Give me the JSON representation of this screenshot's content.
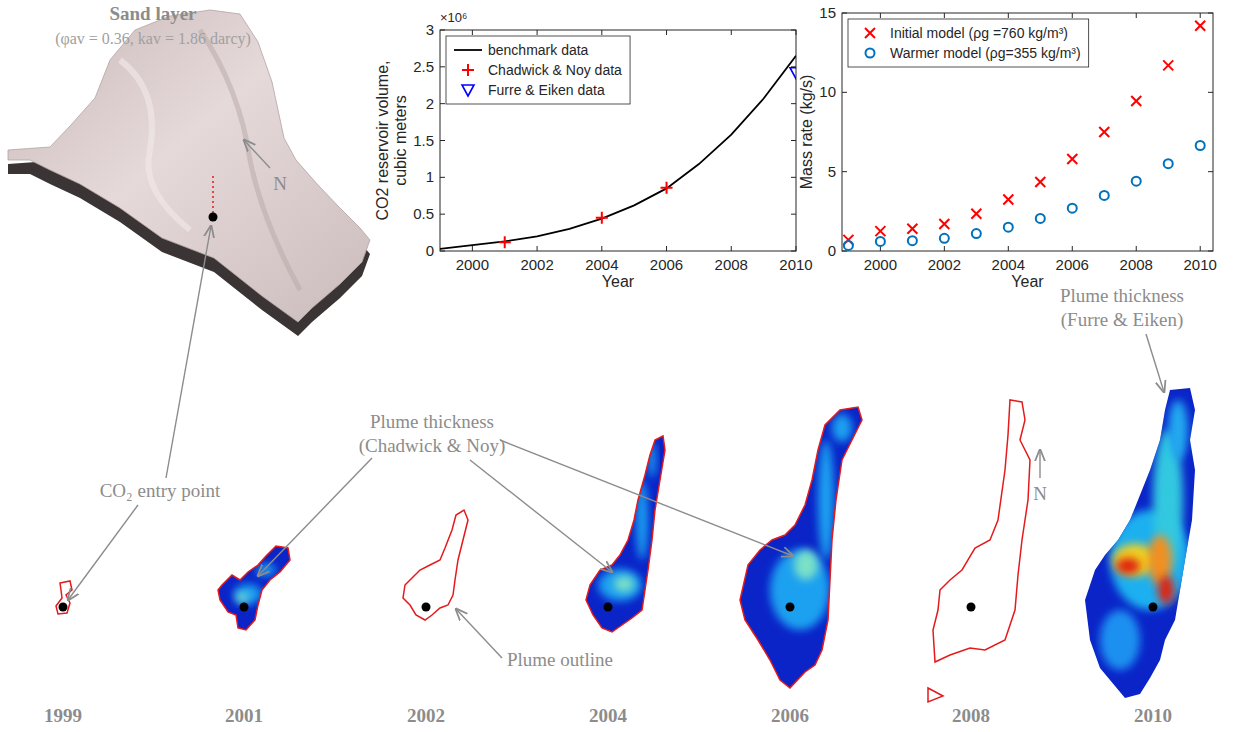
{
  "sand_layer": {
    "title": "Sand layer",
    "subtitle": "(φav = 0.36, kav = 1.86 darcy)",
    "north": "N"
  },
  "chart_data": [
    {
      "type": "line",
      "x_label": "Year",
      "y_label": "CO2 reservoir volume, cubic meters",
      "y_multiplier": "×10⁶",
      "xlim": [
        1999,
        2010
      ],
      "xticks": [
        2000,
        2002,
        2004,
        2006,
        2008,
        2010
      ],
      "ylim": [
        0,
        3
      ],
      "yticks": [
        0,
        0.5,
        1,
        1.5,
        2,
        2.5,
        3
      ],
      "legend": "upper left",
      "series": [
        {
          "name": "benchmark data",
          "type": "line",
          "color": "#000000",
          "line_style": "solid",
          "x": [
            1999,
            2000,
            2001,
            2002,
            2003,
            2004,
            2005,
            2006,
            2007,
            2008,
            2009,
            2010
          ],
          "values": [
            0.03,
            0.08,
            0.13,
            0.2,
            0.3,
            0.44,
            0.62,
            0.85,
            1.18,
            1.58,
            2.07,
            2.65
          ]
        },
        {
          "name": "Chadwick & Noy data",
          "type": "scatter",
          "marker": "plus",
          "color": "#ff0000",
          "x": [
            2001,
            2004,
            2006
          ],
          "values": [
            0.12,
            0.45,
            0.86
          ]
        },
        {
          "name": "Furre & Eiken data",
          "type": "scatter",
          "marker": "triangle-down",
          "color": "#0000ff",
          "x": [
            2010
          ],
          "values": [
            2.42
          ]
        }
      ]
    },
    {
      "type": "scatter",
      "x_label": "Year",
      "y_label": "Mass rate (kg/s)",
      "xlim": [
        1998.8,
        2010.4
      ],
      "xticks": [
        2000,
        2002,
        2004,
        2006,
        2008,
        2010
      ],
      "ylim": [
        0,
        15
      ],
      "yticks": [
        0,
        5,
        10,
        15
      ],
      "legend": "upper left",
      "series": [
        {
          "name": "Initial model (ρg =760 kg/m³)",
          "type": "scatter",
          "marker": "x",
          "color": "#ff0000",
          "x": [
            1999,
            2000,
            2001,
            2002,
            2003,
            2004,
            2005,
            2006,
            2007,
            2008,
            2009,
            2010
          ],
          "values": [
            0.7,
            1.25,
            1.4,
            1.7,
            2.35,
            3.25,
            4.35,
            5.8,
            7.5,
            9.45,
            11.7,
            14.2
          ]
        },
        {
          "name": "Warmer model (ρg=355 kg/m³)",
          "type": "scatter",
          "marker": "circle",
          "color": "#0072bd",
          "x": [
            1999,
            2000,
            2001,
            2002,
            2003,
            2004,
            2005,
            2006,
            2007,
            2008,
            2009,
            2010
          ],
          "values": [
            0.35,
            0.6,
            0.65,
            0.8,
            1.1,
            1.5,
            2.05,
            2.7,
            3.5,
            4.4,
            5.5,
            6.65
          ]
        }
      ]
    }
  ],
  "plumes": [
    {
      "year": "1999"
    },
    {
      "year": "2001"
    },
    {
      "year": "2002"
    },
    {
      "year": "2004"
    },
    {
      "year": "2006"
    },
    {
      "year": "2008"
    },
    {
      "year": "2010"
    }
  ],
  "annotations": {
    "entry_point": "CO₂ entry point",
    "thickness_chadwick": "Plume thickness (Chadwick & Noy)",
    "outline": "Plume outline",
    "thickness_furre": "Plume thickness (Furre & Eiken)",
    "north": "N"
  }
}
